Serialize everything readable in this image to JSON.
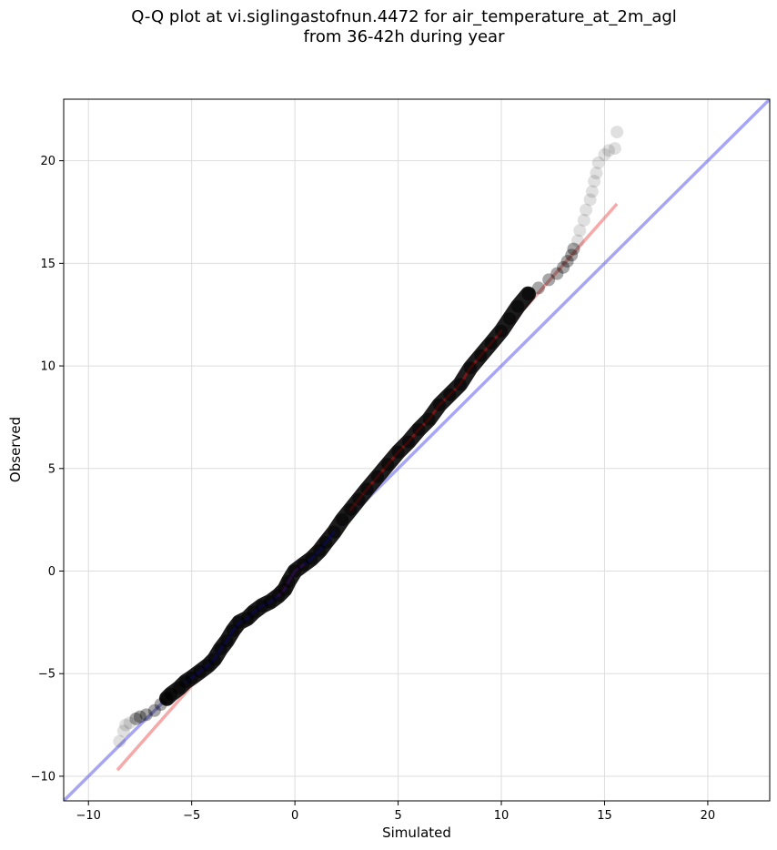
{
  "chart_data": {
    "type": "scatter",
    "title": "Q-Q plot at vi.siglingastofnun.4472 for air_temperature_at_2m_agl",
    "subtitle": "from 36-42h during year",
    "xlabel": "Simulated",
    "ylabel": "Observed",
    "xlim": [
      -11.2,
      23
    ],
    "ylim": [
      -11.2,
      23
    ],
    "x_ticks": [
      -10,
      -5,
      0,
      5,
      10,
      15,
      20
    ],
    "y_ticks": [
      -10,
      -5,
      0,
      5,
      10,
      15,
      20
    ],
    "x_tick_labels": [
      "−10",
      "−5",
      "0",
      "5",
      "10",
      "15",
      "20"
    ],
    "y_tick_labels": [
      "−10",
      "−5",
      "0",
      "5",
      "10",
      "15",
      "20"
    ],
    "grid": true,
    "colors": {
      "points": "#000000",
      "identity_line": "#6b6bef",
      "fit_line": "#f07070",
      "blue_band": "#1515aa",
      "red_band": "#991515",
      "purple_band": "#6a1f8a"
    },
    "quantile_points": [
      [
        -8.5,
        -8.3
      ],
      [
        -8.3,
        -7.8
      ],
      [
        -8.2,
        -7.5
      ],
      [
        -8.0,
        -7.4
      ],
      [
        -7.7,
        -7.2
      ],
      [
        -7.5,
        -7.1
      ],
      [
        -7.2,
        -7.0
      ],
      [
        -6.8,
        -6.8
      ],
      [
        -6.5,
        -6.5
      ],
      [
        -6.2,
        -6.2
      ],
      [
        -6.0,
        -6.0
      ],
      [
        -5.6,
        -5.7
      ],
      [
        -5.3,
        -5.4
      ],
      [
        -5.0,
        -5.2
      ],
      [
        -4.6,
        -4.9
      ],
      [
        -4.2,
        -4.6
      ],
      [
        -3.9,
        -4.3
      ],
      [
        -3.6,
        -3.8
      ],
      [
        -3.3,
        -3.4
      ],
      [
        -3.0,
        -2.9
      ],
      [
        -2.7,
        -2.5
      ],
      [
        -2.3,
        -2.3
      ],
      [
        -2.0,
        -2.0
      ],
      [
        -1.6,
        -1.7
      ],
      [
        -1.2,
        -1.5
      ],
      [
        -0.8,
        -1.2
      ],
      [
        -0.5,
        -0.9
      ],
      [
        -0.3,
        -0.5
      ],
      [
        0.0,
        0.0
      ],
      [
        0.4,
        0.3
      ],
      [
        0.8,
        0.6
      ],
      [
        1.2,
        1.0
      ],
      [
        1.5,
        1.4
      ],
      [
        1.9,
        1.9
      ],
      [
        2.3,
        2.5
      ],
      [
        2.7,
        3.0
      ],
      [
        3.1,
        3.5
      ],
      [
        3.5,
        4.0
      ],
      [
        4.0,
        4.6
      ],
      [
        4.5,
        5.2
      ],
      [
        5.0,
        5.8
      ],
      [
        5.5,
        6.3
      ],
      [
        6.0,
        6.9
      ],
      [
        6.5,
        7.4
      ],
      [
        7.0,
        8.1
      ],
      [
        7.5,
        8.6
      ],
      [
        8.0,
        9.1
      ],
      [
        8.5,
        9.9
      ],
      [
        9.0,
        10.5
      ],
      [
        9.5,
        11.1
      ],
      [
        10.0,
        11.7
      ],
      [
        10.4,
        12.3
      ],
      [
        10.8,
        12.9
      ],
      [
        11.3,
        13.5
      ],
      [
        11.8,
        13.8
      ],
      [
        12.3,
        14.2
      ],
      [
        12.7,
        14.5
      ],
      [
        13.0,
        14.8
      ],
      [
        13.2,
        15.1
      ],
      [
        13.4,
        15.4
      ],
      [
        13.5,
        15.7
      ],
      [
        13.7,
        16.1
      ],
      [
        13.8,
        16.6
      ],
      [
        14.0,
        17.1
      ],
      [
        14.1,
        17.6
      ],
      [
        14.3,
        18.1
      ],
      [
        14.4,
        18.5
      ],
      [
        14.5,
        19.0
      ],
      [
        14.6,
        19.4
      ],
      [
        14.7,
        19.9
      ],
      [
        15.0,
        20.3
      ],
      [
        15.2,
        20.5
      ],
      [
        15.5,
        20.6
      ],
      [
        15.6,
        21.4
      ]
    ],
    "identity_line": {
      "x": [
        -11.2,
        23
      ],
      "y": [
        -11.2,
        23
      ]
    },
    "fit_line": {
      "x": [
        -8.6,
        15.6
      ],
      "y": [
        -9.7,
        17.9
      ]
    }
  }
}
